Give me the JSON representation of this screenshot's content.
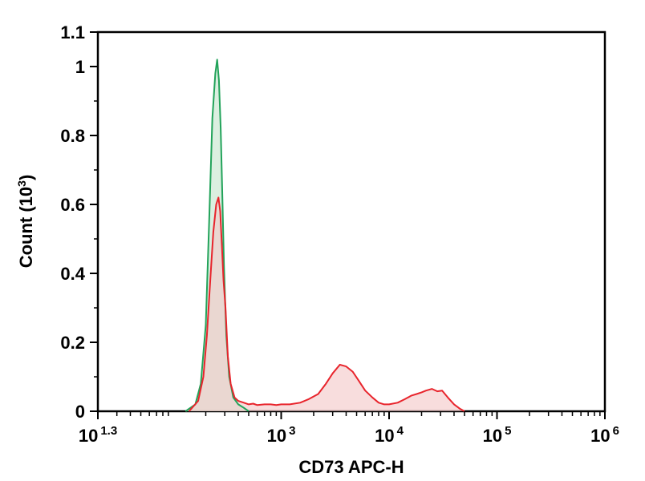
{
  "chart_data": {
    "type": "area",
    "xlabel": "CD73 APC-H",
    "ylabel": "Count (10",
    "ylabel_superscript": "3",
    "ylabel_tail": ")",
    "x_scale": "log",
    "xlim": [
      20,
      1000000
    ],
    "ylim": [
      0,
      1.1
    ],
    "grid": false,
    "x_ticks": [
      {
        "value": 20,
        "base": "10",
        "exp": "1.3"
      },
      {
        "value": 1000,
        "base": "10",
        "exp": "3"
      },
      {
        "value": 10000,
        "base": "10",
        "exp": "4"
      },
      {
        "value": 100000,
        "base": "10",
        "exp": "5"
      },
      {
        "value": 1000000,
        "base": "10",
        "exp": "6"
      }
    ],
    "y_ticks": [
      {
        "value": 0,
        "label": "0"
      },
      {
        "value": 0.2,
        "label": "0.2"
      },
      {
        "value": 0.4,
        "label": "0.4"
      },
      {
        "value": 0.6,
        "label": "0.6"
      },
      {
        "value": 0.8,
        "label": "0.8"
      },
      {
        "value": 1.0,
        "label": "1"
      },
      {
        "value": 1.1,
        "label": "1.1"
      }
    ],
    "series": [
      {
        "color": "#22a35a",
        "fill": "#cfe9d6",
        "x": [
          130,
          160,
          180,
          200,
          215,
          230,
          245,
          255,
          265,
          275,
          285,
          295,
          310,
          330,
          360,
          400,
          450,
          500
        ],
        "y": [
          0,
          0.02,
          0.08,
          0.25,
          0.55,
          0.85,
          0.98,
          1.02,
          0.96,
          0.82,
          0.62,
          0.42,
          0.22,
          0.1,
          0.04,
          0.02,
          0.01,
          0
        ]
      },
      {
        "color": "#e8242c",
        "fill": "#f4c6c6",
        "x": [
          140,
          170,
          190,
          205,
          220,
          235,
          250,
          262,
          272,
          282,
          292,
          305,
          320,
          340,
          370,
          400,
          450,
          500,
          550,
          600,
          700,
          800,
          900,
          1000,
          1200,
          1500,
          1800,
          2200,
          2600,
          3000,
          3500,
          4000,
          4600,
          5200,
          6000,
          7000,
          8000,
          9000,
          10000,
          12000,
          14000,
          16000,
          18000,
          20000,
          22000,
          25000,
          28000,
          31000,
          35000,
          40000,
          45000,
          50000
        ],
        "y": [
          0,
          0.03,
          0.1,
          0.22,
          0.38,
          0.52,
          0.6,
          0.62,
          0.58,
          0.48,
          0.38,
          0.3,
          0.16,
          0.08,
          0.04,
          0.03,
          0.025,
          0.02,
          0.022,
          0.018,
          0.02,
          0.02,
          0.018,
          0.02,
          0.02,
          0.025,
          0.035,
          0.05,
          0.08,
          0.11,
          0.135,
          0.13,
          0.115,
          0.09,
          0.06,
          0.04,
          0.025,
          0.02,
          0.02,
          0.025,
          0.035,
          0.045,
          0.05,
          0.055,
          0.06,
          0.065,
          0.058,
          0.06,
          0.04,
          0.02,
          0.008,
          0
        ]
      }
    ]
  }
}
